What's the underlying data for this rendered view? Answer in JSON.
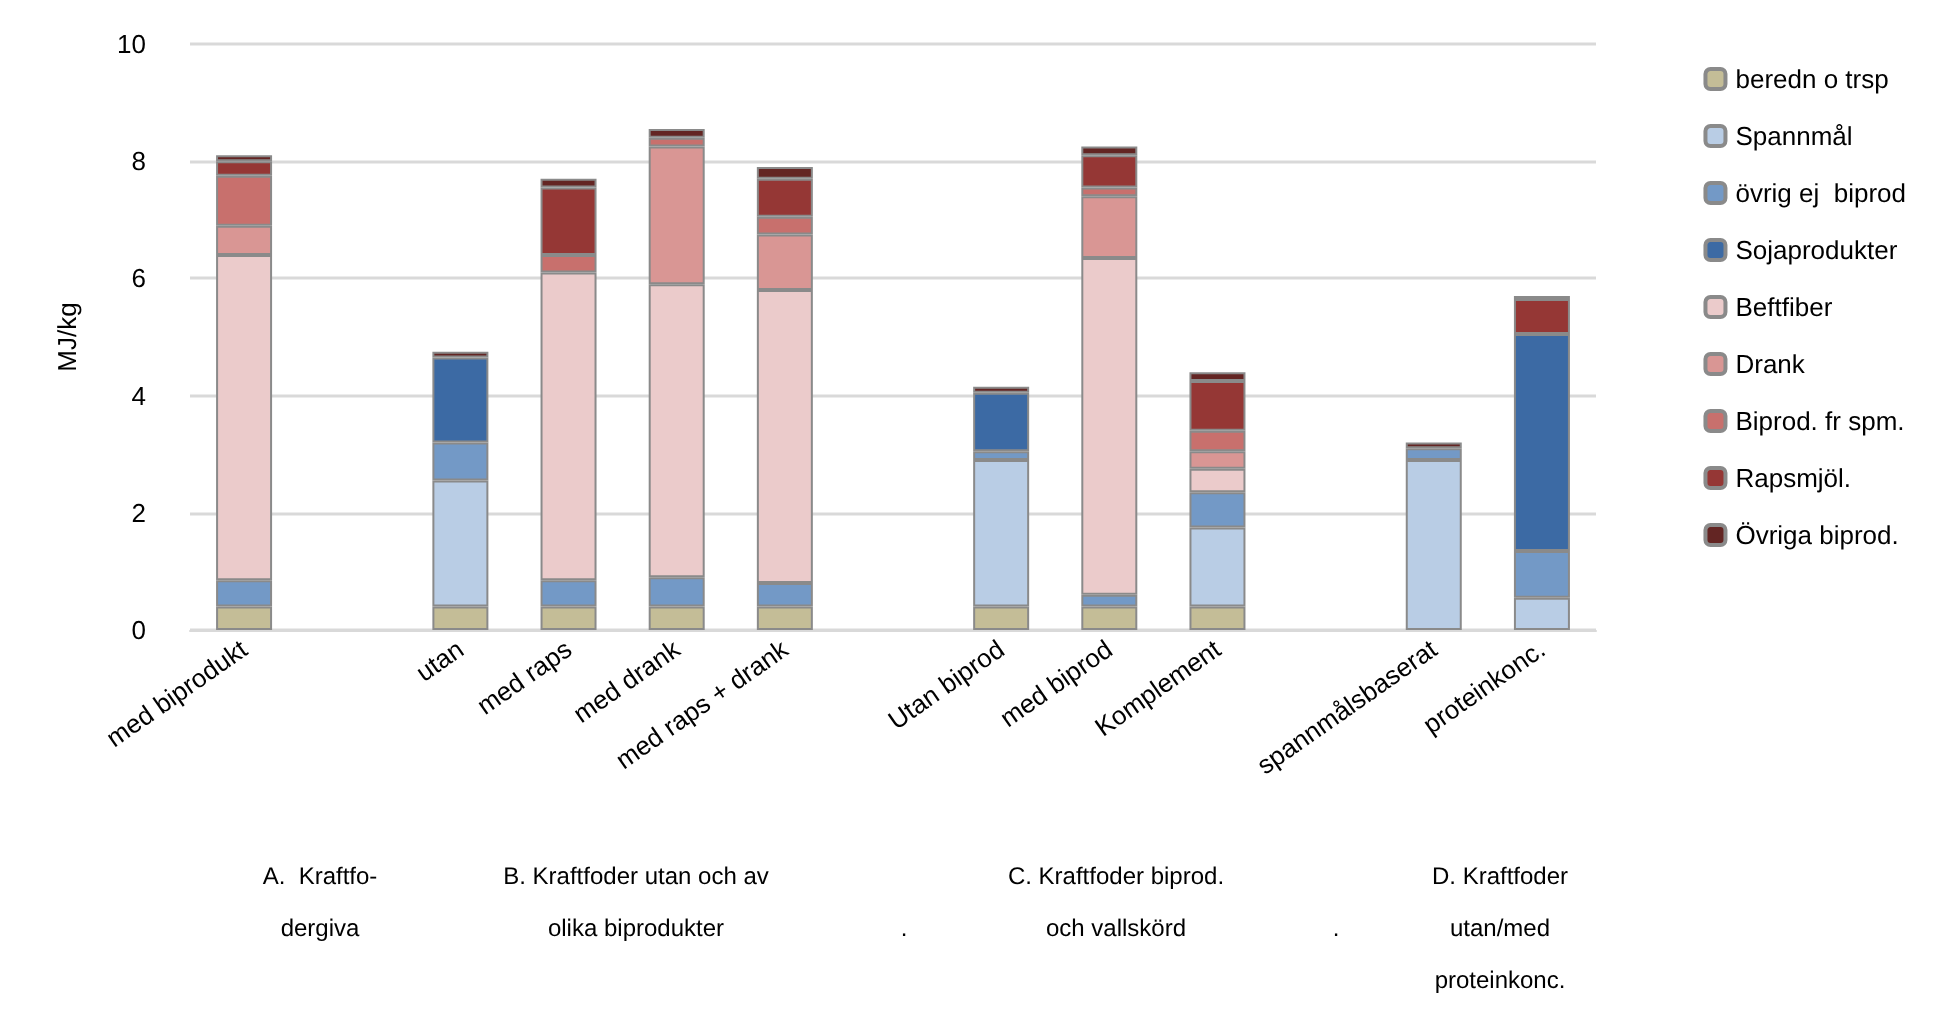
{
  "chart_data": {
    "type": "bar",
    "stacked": true,
    "ylabel": "MJ/kg",
    "ylim": [
      0,
      10
    ],
    "yticks": [
      0,
      2,
      4,
      6,
      8,
      10
    ],
    "grid": "y",
    "legend": "right",
    "categories": [
      "med biprodukt",
      null,
      "utan",
      "med raps",
      "med drank",
      "med raps + drank",
      null,
      "Utan biprod",
      "med biprod",
      "Komplement",
      null,
      "spannmålsbaserat",
      "proteinkonc."
    ],
    "series": [
      {
        "name": "beredn o trsp",
        "color": "#c4bd97",
        "values": [
          0.4,
          null,
          0.4,
          0.4,
          0.4,
          0.4,
          null,
          0.4,
          0.4,
          0.4,
          null,
          null,
          null
        ]
      },
      {
        "name": "Spannmål",
        "color": "#b9cde5",
        "values": [
          null,
          null,
          2.15,
          null,
          null,
          null,
          null,
          2.5,
          null,
          1.35,
          null,
          2.9,
          0.55
        ]
      },
      {
        "name": "övrig ej  biprod",
        "color": "#7399c6",
        "values": [
          0.45,
          null,
          0.65,
          0.45,
          0.5,
          0.4,
          null,
          0.15,
          0.2,
          0.6,
          null,
          0.2,
          0.8
        ]
      },
      {
        "name": "Sojaprodukter",
        "color": "#3c6aa4",
        "values": [
          null,
          null,
          1.45,
          null,
          null,
          null,
          null,
          1.0,
          null,
          null,
          null,
          null,
          3.7
        ]
      },
      {
        "name": "Beftfiber",
        "color": "#ebcbcb",
        "values": [
          5.55,
          null,
          null,
          5.25,
          5.0,
          5.0,
          null,
          null,
          5.75,
          0.4,
          null,
          null,
          null
        ]
      },
      {
        "name": "Drank",
        "color": "#d99694",
        "values": [
          0.5,
          null,
          null,
          null,
          2.35,
          0.95,
          null,
          null,
          1.05,
          0.3,
          null,
          null,
          null
        ]
      },
      {
        "name": "Biprod. fr spm.",
        "color": "#c8706d",
        "values": [
          0.85,
          null,
          null,
          0.3,
          0.15,
          0.3,
          null,
          null,
          0.15,
          0.35,
          null,
          null,
          null
        ]
      },
      {
        "name": "Rapsmjöl.",
        "color": "#953735",
        "values": [
          0.25,
          null,
          null,
          1.15,
          null,
          0.65,
          null,
          null,
          0.55,
          0.85,
          null,
          null,
          0.6
        ]
      },
      {
        "name": "Övriga biprod.",
        "color": "#632523",
        "values": [
          0.1,
          null,
          0.1,
          0.15,
          0.15,
          0.2,
          null,
          0.1,
          0.15,
          0.15,
          null,
          0.1,
          0.05
        ]
      }
    ],
    "annotations": [
      "A.  Kraftfo-\ndergiva",
      "B. Kraftfoder utan och av\nolika biprodukter",
      ".",
      "C. Kraftfoder biprod.\noch vallskörd",
      ".",
      "D. Kraftfoder\nutan/med\nproteinkonc."
    ]
  }
}
